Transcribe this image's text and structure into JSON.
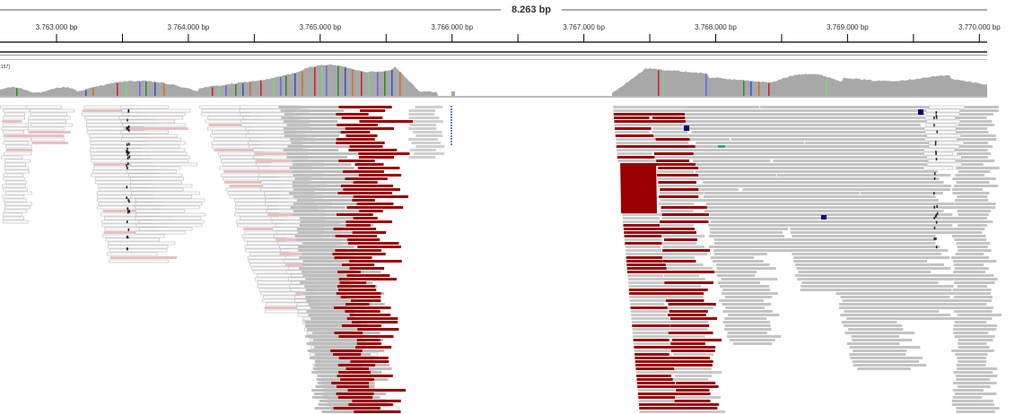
{
  "ruler": {
    "span_label": "8.263 bp",
    "ticks": [
      {
        "label": "3.763.000 bp",
        "bp": 3763000
      },
      {
        "label": "3.764.000 bp",
        "bp": 3764000
      },
      {
        "label": "3.765.000 bp",
        "bp": 3765000
      },
      {
        "label": "3.766.000 bp",
        "bp": 3766000
      },
      {
        "label": "3.767.000 bp",
        "bp": 3767000
      },
      {
        "label": "3.768.000 bp",
        "bp": 3768000
      },
      {
        "label": "3.769.000 bp",
        "bp": 3769000
      },
      {
        "label": "3.770.000 bp",
        "bp": 3770000
      }
    ]
  },
  "coverage": {
    "range_label": "157]"
  },
  "colors": {
    "background": "#ffffff",
    "ruler_line": "#000000",
    "coverage_fill": "#a8a8a8",
    "read_gray": "#c4c4c4",
    "read_light": "#ffffff",
    "read_outline": "#b8b8b8",
    "read_insert_red": "#990000",
    "mismatch_dark_blue": "#000088",
    "mismatch_teal": "#3a9c9c",
    "snp_colors": [
      "#2a8a2a",
      "#3050d0",
      "#d07020",
      "#cc2020",
      "#7dd27d",
      "#6666ee"
    ]
  }
}
